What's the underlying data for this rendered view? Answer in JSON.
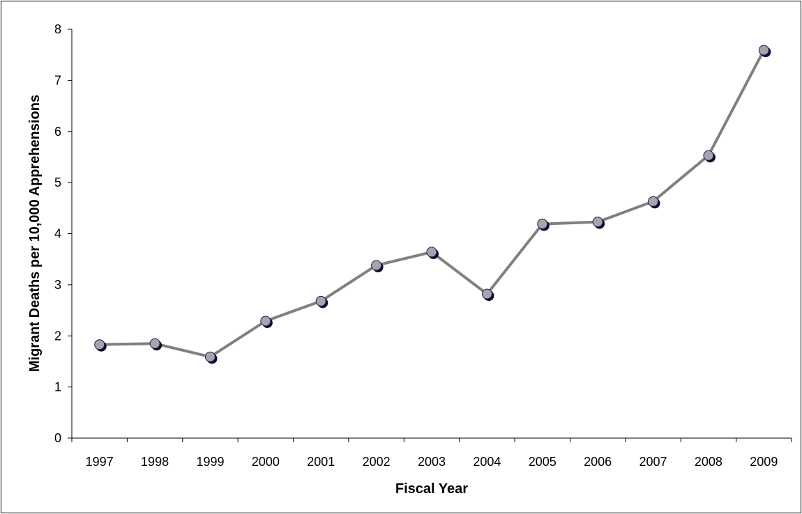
{
  "chart_data": {
    "type": "line",
    "title": "",
    "xlabel": "Fiscal Year",
    "ylabel": "Migrant Deaths per 10,000 Apprehensions",
    "categories": [
      "1997",
      "1998",
      "1999",
      "2000",
      "2001",
      "2002",
      "2003",
      "2004",
      "2005",
      "2006",
      "2007",
      "2008",
      "2009"
    ],
    "series": [
      {
        "values": [
          1.83,
          1.85,
          1.59,
          2.29,
          2.68,
          3.38,
          3.64,
          2.82,
          4.19,
          4.23,
          4.63,
          5.53,
          7.59
        ]
      }
    ],
    "ylim": [
      0,
      8
    ],
    "yticks": [
      "0",
      "1",
      "2",
      "3",
      "4",
      "5",
      "6",
      "7",
      "8"
    ],
    "grid": false,
    "legend": "none",
    "colors": {
      "line": "#808080",
      "marker_fill": "#a6a6a6",
      "marker_shadow": "#0d0d2b",
      "marker_edge": "#1a1a6e",
      "axis": "#000000"
    }
  }
}
